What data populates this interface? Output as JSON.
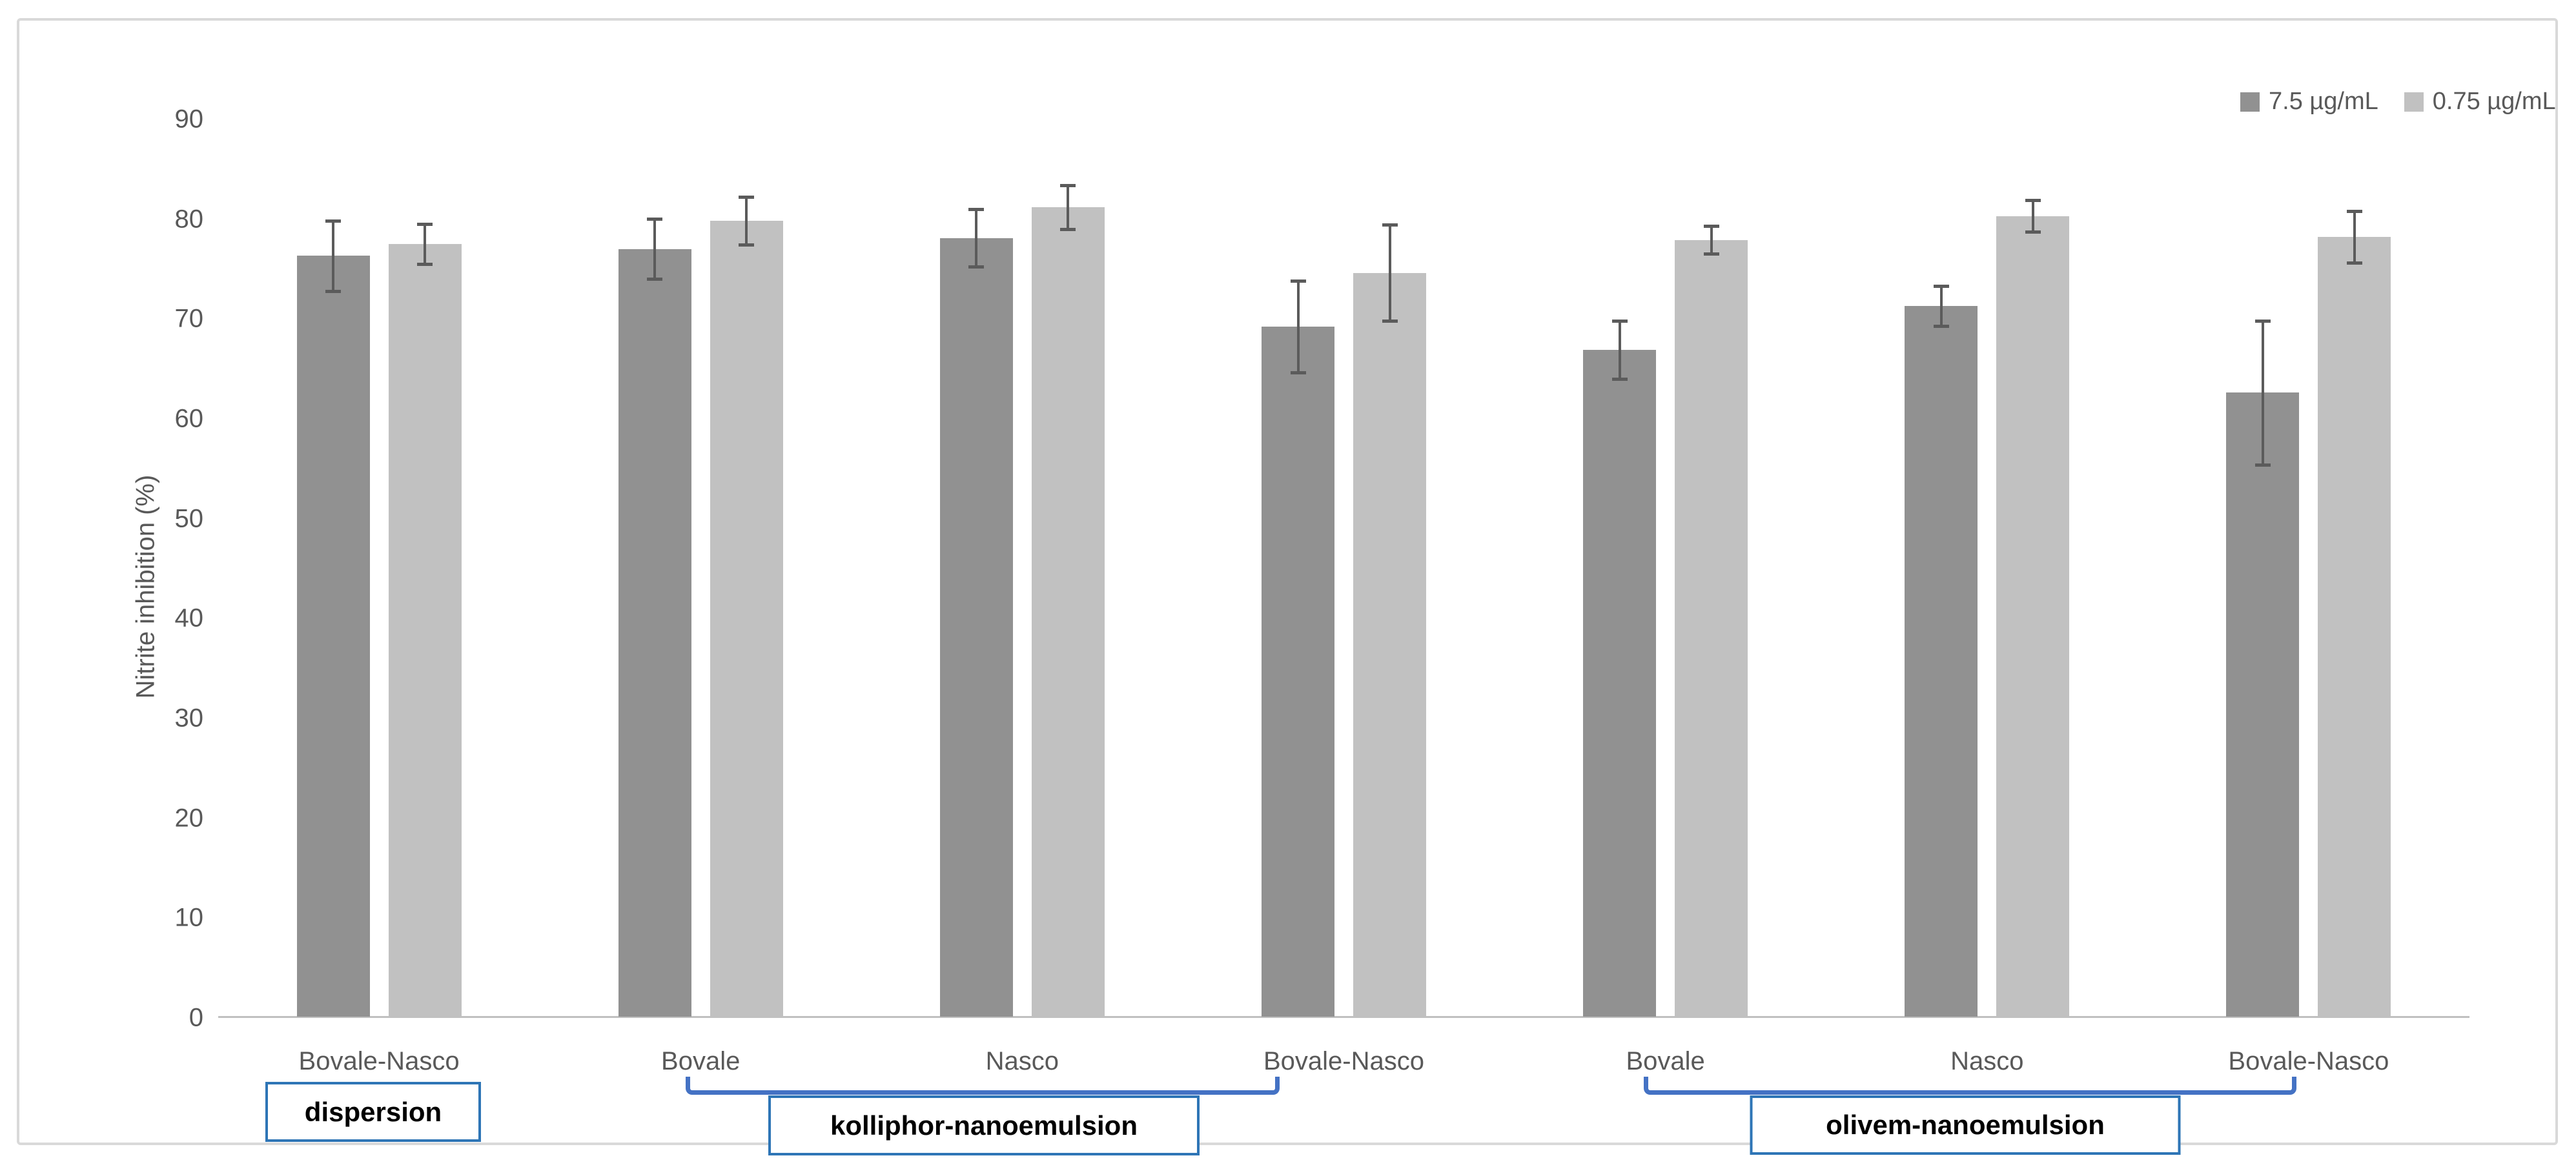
{
  "chart_data": {
    "type": "bar",
    "title": "",
    "xlabel": "",
    "ylabel": "Nitrite inhibition (%)",
    "ylim": [
      0,
      90
    ],
    "yticks": [
      0,
      10,
      20,
      30,
      40,
      50,
      60,
      70,
      80,
      90
    ],
    "grid": false,
    "legend_position": "top-right",
    "categories": [
      "Bovale-Nasco",
      "Bovale",
      "Nasco",
      "Bovale-Nasco",
      "Bovale",
      "Nasco",
      "Bovale-Nasco"
    ],
    "series": [
      {
        "name": "7.5 µg/mL",
        "color": "#919191",
        "values": [
          76.2,
          76.9,
          78.0,
          69.1,
          66.8,
          71.2,
          62.5
        ],
        "errors": [
          3.5,
          3.0,
          2.9,
          4.6,
          2.9,
          2.0,
          7.2
        ]
      },
      {
        "name": "0.75 µg/mL",
        "color": "#c1c1c1",
        "values": [
          77.4,
          79.7,
          81.1,
          74.5,
          77.8,
          80.2,
          78.1
        ],
        "errors": [
          2.0,
          2.4,
          2.2,
          4.8,
          1.4,
          1.6,
          2.6
        ]
      }
    ],
    "groups": [
      {
        "label": "dispersion",
        "from": 0,
        "to": 0,
        "bracket": false
      },
      {
        "label": "kolliphor-nanoemulsion",
        "from": 1,
        "to": 3,
        "bracket": true
      },
      {
        "label": "olivem-nanoemulsion",
        "from": 4,
        "to": 6,
        "bracket": true
      }
    ],
    "colors": {
      "error_bar": "#5b5b5b",
      "axis_line": "#c0c0c0",
      "box_border": "#2e75b6",
      "bracket": "#4472c4",
      "frame_border": "#d9d9d9",
      "text": "#595959"
    }
  }
}
